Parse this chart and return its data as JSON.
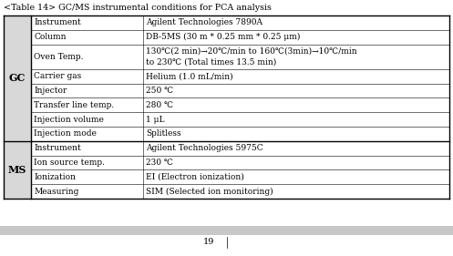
{
  "title": "<Table 14> GC/MS instrumental conditions for PCA analysis",
  "page_number": "19",
  "gc_label": "GC",
  "ms_label": "MS",
  "gc_rows": [
    [
      "Instrument",
      "Agilent Technologies 7890A"
    ],
    [
      "Column",
      "DB-5MS (30 m * 0.25 mm * 0.25 μm)"
    ],
    [
      "Oven Temp.",
      "130℃(2 min)→20℃/min to 160℃(3min)→10℃/min\nto 230℃ (Total times 13.5 min)"
    ],
    [
      "Carrier gas",
      "Helium (1.0 mL/min)"
    ],
    [
      "Injector",
      "250 ℃"
    ],
    [
      "Transfer line temp.",
      "280 ℃"
    ],
    [
      "Injection volume",
      "1 μL"
    ],
    [
      "Injection mode",
      "Splitless"
    ]
  ],
  "ms_rows": [
    [
      "Instrument",
      "Agilent Technologies 5975C"
    ],
    [
      "Ion source temp.",
      "230 ℃"
    ],
    [
      "Ionization",
      "EI (Electron ionization)"
    ],
    [
      "Measuring",
      "SIM (Selected ion monitoring)"
    ]
  ],
  "cell_bg": "#ffffff",
  "label_bg": "#d8d8d8",
  "text_color": "#000000",
  "border_color": "#000000",
  "footer_bar_color": "#c8c8c8",
  "font_size": 6.5,
  "title_font_size": 6.8
}
